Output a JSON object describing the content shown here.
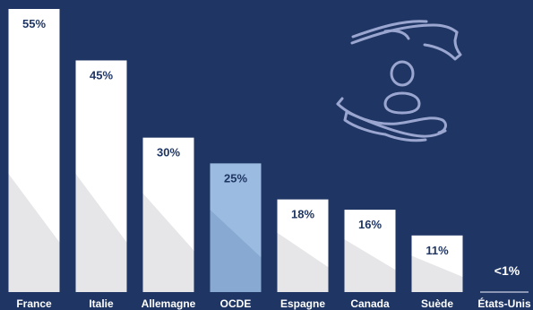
{
  "colors": {
    "background": "#1f3664",
    "bar_default": "#ffffff",
    "bar_shade": "#e6e6e8",
    "bar_highlight": "#9bbce0",
    "bar_highlight_shade": "#87a9d2",
    "value_label": "#1f3664",
    "category_label": "#ffffff",
    "icon_stroke": "#9aa6cf",
    "baseline_line": "#c9d0e3"
  },
  "icon": {
    "name": "hands-protecting-person-icon"
  },
  "chart_data": {
    "type": "bar",
    "title": "",
    "xlabel": "",
    "ylabel": "",
    "categories": [
      "France",
      "Italie",
      "Allemagne",
      "OCDE",
      "Espagne",
      "Canada",
      "Suède",
      "États-Unis"
    ],
    "values": [
      55,
      45,
      30,
      25,
      18,
      16,
      11,
      0.5
    ],
    "value_labels": [
      "55%",
      "45%",
      "30%",
      "25%",
      "18%",
      "16%",
      "11%",
      "<1%"
    ],
    "highlight_category": "OCDE",
    "ylim": [
      0,
      55
    ],
    "grid": false,
    "legend": false
  }
}
